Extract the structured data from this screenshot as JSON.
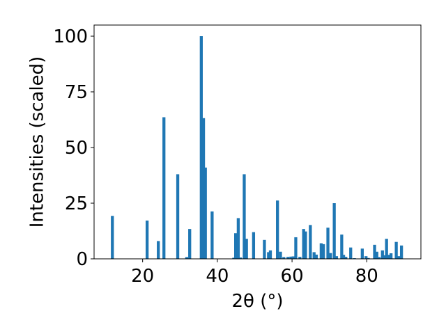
{
  "chart_data": {
    "type": "bar",
    "title": "",
    "xlabel": "2θ (°)",
    "ylabel": "Intensities (scaled)",
    "xlim": [
      7.0,
      94.5
    ],
    "ylim": [
      0,
      105
    ],
    "xticks": [
      20,
      40,
      60,
      80
    ],
    "yticks": [
      0,
      25,
      50,
      75,
      100
    ],
    "grid": false,
    "bar_color": "#1f77b4",
    "bar_width": 0.8,
    "x": [
      11.9,
      21.2,
      24.2,
      25.7,
      29.4,
      31.8,
      32.6,
      35.7,
      36.3,
      36.8,
      38.6,
      44.4,
      44.9,
      45.6,
      46.2,
      47.2,
      47.8,
      49.7,
      52.6,
      53.7,
      54.2,
      56.1,
      56.9,
      57.8,
      58.9,
      59.7,
      60.3,
      61.0,
      62.1,
      63.1,
      63.6,
      64.9,
      65.9,
      66.5,
      67.8,
      68.4,
      69.6,
      70.3,
      71.3,
      71.9,
      73.3,
      73.8,
      74.4,
      75.7,
      76.7,
      78.8,
      79.8,
      80.4,
      82.1,
      82.7,
      83.3,
      84.2,
      84.7,
      85.3,
      85.9,
      86.5,
      87.0,
      87.9,
      88.6,
      89.3
    ],
    "values": [
      19.3,
      17.2,
      8.0,
      63.6,
      38.0,
      0.8,
      13.4,
      100.0,
      63.2,
      41.0,
      21.3,
      0.5,
      11.5,
      18.3,
      0.6,
      38.0,
      9.0,
      12.0,
      8.5,
      3.0,
      3.8,
      26.2,
      3.2,
      0.8,
      0.9,
      1.0,
      1.1,
      9.7,
      0.9,
      13.4,
      12.3,
      15.2,
      3.0,
      1.9,
      7.0,
      6.6,
      14.0,
      2.6,
      25.0,
      1.2,
      10.9,
      1.8,
      0.9,
      5.1,
      0.3,
      4.6,
      1.2,
      0.4,
      6.3,
      3.2,
      0.8,
      3.8,
      1.6,
      9.0,
      1.8,
      2.5,
      0.2,
      7.6,
      1.2,
      6.0
    ]
  }
}
